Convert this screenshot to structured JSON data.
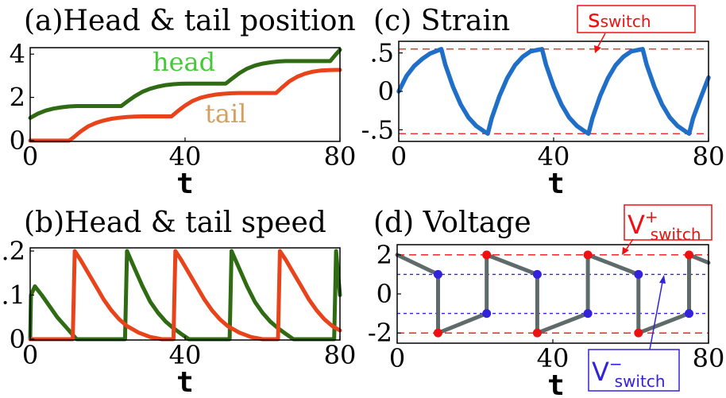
{
  "colors": {
    "head": "#2e6b12",
    "tail": "#e8431a",
    "strain": "#1f6fc9",
    "voltage_line": "#5f6b6b",
    "v_plus_dot": "#ee1111",
    "v_minus_dot": "#3322dd",
    "red_ref": "#ee1111",
    "blue_ref": "#3322dd",
    "head_label": "#46c83a",
    "tail_label": "#d4a062"
  },
  "chart_data": [
    {
      "id": "a",
      "type": "line",
      "title": "(a)Head & tail position",
      "xlabel": "t",
      "xlim": [
        0,
        80
      ],
      "ylim": [
        0,
        4.3
      ],
      "xticks": [
        "0",
        "40",
        "80"
      ],
      "yticks": [
        {
          "value": 0,
          "label": "0"
        },
        {
          "value": 2,
          "label": "2"
        },
        {
          "value": 4,
          "label": "4"
        }
      ],
      "annotations": {
        "head": "head",
        "tail": "tail"
      },
      "series": [
        {
          "name": "head",
          "color": "#2e6b12",
          "x": [
            0,
            2,
            4,
            6,
            8,
            10,
            12,
            14,
            16,
            18,
            20,
            22,
            23.5,
            25,
            27,
            29,
            31,
            33,
            35,
            37,
            39,
            41,
            43,
            45,
            47,
            49,
            50.5,
            52,
            54,
            56,
            58,
            60,
            62,
            64,
            66,
            68,
            70,
            72,
            74,
            76,
            77.5,
            79,
            80
          ],
          "y": [
            1.05,
            1.25,
            1.39,
            1.48,
            1.54,
            1.58,
            1.6,
            1.6,
            1.6,
            1.6,
            1.6,
            1.6,
            1.6,
            1.8,
            2.05,
            2.26,
            2.4,
            2.5,
            2.57,
            2.61,
            2.63,
            2.64,
            2.64,
            2.64,
            2.64,
            2.64,
            2.64,
            2.85,
            3.12,
            3.33,
            3.47,
            3.56,
            3.62,
            3.66,
            3.68,
            3.68,
            3.68,
            3.68,
            3.68,
            3.68,
            3.68,
            4.0,
            4.2
          ]
        },
        {
          "name": "tail",
          "color": "#e8431a",
          "x": [
            0,
            5,
            10,
            11,
            13,
            15,
            17,
            19,
            21,
            23,
            25,
            27,
            29,
            31,
            33,
            35,
            36.5,
            38,
            40,
            42,
            44,
            46,
            48,
            50,
            52,
            54,
            56,
            58,
            60,
            62,
            63.5,
            65,
            67,
            69,
            71,
            73,
            75,
            77,
            79,
            80
          ],
          "y": [
            0,
            0,
            0,
            0.12,
            0.42,
            0.66,
            0.82,
            0.93,
            1.01,
            1.06,
            1.09,
            1.11,
            1.12,
            1.12,
            1.12,
            1.12,
            1.12,
            1.35,
            1.62,
            1.84,
            1.98,
            2.07,
            2.13,
            2.17,
            2.19,
            2.2,
            2.2,
            2.2,
            2.2,
            2.2,
            2.2,
            2.45,
            2.75,
            2.96,
            3.1,
            3.19,
            3.24,
            3.26,
            3.27,
            3.27
          ]
        }
      ]
    },
    {
      "id": "b",
      "type": "line",
      "title": "(b)Head & tail speed",
      "xlabel": "t",
      "xlim": [
        0,
        80
      ],
      "ylim": [
        0,
        0.2
      ],
      "xticks": [
        "0",
        "40",
        "80"
      ],
      "yticks": [
        {
          "value": 0,
          "label": "0"
        },
        {
          "value": 0.1,
          "label": ".1"
        },
        {
          "value": 0.2,
          "label": ".2"
        }
      ],
      "series": [
        {
          "name": "head",
          "color": "#2e6b12",
          "x": [
            0,
            0.2,
            1.2,
            3,
            5,
            7,
            9,
            10,
            11,
            12,
            14,
            16,
            18,
            20,
            22,
            23.5,
            24.5,
            25,
            27,
            29,
            31,
            33,
            35,
            37,
            39,
            41,
            43,
            45,
            47,
            49,
            50.5,
            51.5,
            52,
            54,
            56,
            58,
            60,
            62,
            64,
            66,
            68,
            70,
            72,
            74,
            76,
            77.5,
            78.5,
            79,
            80
          ],
          "y": [
            0,
            0.1,
            0.12,
            0.1,
            0.075,
            0.05,
            0.03,
            0.02,
            0.01,
            0,
            0,
            0,
            0,
            0,
            0,
            0,
            0,
            0.2,
            0.16,
            0.12,
            0.085,
            0.06,
            0.04,
            0.025,
            0.012,
            0,
            0,
            0,
            0,
            0,
            0,
            0,
            0.2,
            0.16,
            0.12,
            0.085,
            0.06,
            0.04,
            0.025,
            0.012,
            0,
            0,
            0,
            0,
            0,
            0,
            0,
            0.2,
            0.1
          ]
        },
        {
          "name": "tail",
          "color": "#e8431a",
          "x": [
            0,
            10,
            11,
            11.5,
            13,
            15,
            17,
            19,
            21,
            23,
            25,
            28,
            31,
            34,
            36.5,
            37,
            37.5,
            39,
            41,
            43,
            45,
            47,
            49,
            51,
            54,
            57,
            60,
            63.5,
            64,
            64.5,
            66,
            68,
            70,
            72,
            74,
            76,
            78,
            80
          ],
          "y": [
            0,
            0,
            0,
            0.2,
            0.18,
            0.15,
            0.12,
            0.09,
            0.065,
            0.045,
            0.03,
            0.015,
            0.005,
            0,
            0,
            0,
            0.2,
            0.18,
            0.15,
            0.12,
            0.09,
            0.065,
            0.045,
            0.03,
            0.015,
            0.005,
            0,
            0,
            0,
            0.2,
            0.18,
            0.15,
            0.12,
            0.09,
            0.065,
            0.045,
            0.03,
            0.02
          ]
        }
      ]
    },
    {
      "id": "c",
      "type": "line",
      "title": "(c) Strain",
      "xlabel": "t",
      "xlim": [
        0,
        80
      ],
      "ylim": [
        -0.62,
        0.62
      ],
      "xticks": [
        "0",
        "40",
        "80"
      ],
      "yticks": [
        {
          "value": 0.5,
          "label": ".5"
        },
        {
          "value": 0,
          "label": "0"
        },
        {
          "value": -0.5,
          "label": "-.5"
        }
      ],
      "reference_lines": [
        {
          "value": 0.55,
          "color": "#ee1111"
        },
        {
          "value": -0.55,
          "color": "#ee1111"
        }
      ],
      "annotations": {
        "s_switch_main": "s",
        "s_switch_sub": "switch"
      },
      "series": [
        {
          "name": "strain",
          "color": "#1f6fc9",
          "x": [
            0,
            2,
            4,
            6,
            8,
            10,
            11,
            12,
            14,
            16,
            18,
            20,
            22,
            23,
            24,
            26,
            28,
            30,
            32,
            34,
            36,
            37,
            38,
            40,
            42,
            44,
            46,
            48,
            49,
            50,
            52,
            54,
            56,
            58,
            60,
            62,
            63,
            64,
            66,
            68,
            70,
            72,
            74,
            75,
            76,
            78,
            80
          ],
          "y": [
            0,
            0.2,
            0.33,
            0.42,
            0.49,
            0.53,
            0.55,
            0.35,
            0.06,
            -0.17,
            -0.34,
            -0.45,
            -0.52,
            -0.55,
            -0.35,
            -0.06,
            0.17,
            0.34,
            0.45,
            0.52,
            0.54,
            0.55,
            0.35,
            0.06,
            -0.17,
            -0.34,
            -0.45,
            -0.52,
            -0.55,
            -0.35,
            -0.06,
            0.17,
            0.34,
            0.45,
            0.52,
            0.54,
            0.55,
            0.35,
            0.06,
            -0.17,
            -0.34,
            -0.45,
            -0.52,
            -0.55,
            -0.35,
            -0.08,
            0.18
          ]
        }
      ]
    },
    {
      "id": "d",
      "type": "line",
      "title": "(d) Voltage",
      "xlabel": "t",
      "xlim": [
        0,
        80
      ],
      "ylim": [
        -2.4,
        2.4
      ],
      "xticks": [
        "0",
        "40",
        "80"
      ],
      "yticks": [
        {
          "value": 2,
          "label": "2"
        },
        {
          "value": 0,
          "label": "0"
        },
        {
          "value": -2,
          "label": "-2"
        }
      ],
      "reference_lines": [
        {
          "value": 2,
          "color": "#ee1111"
        },
        {
          "value": -2,
          "color": "#ee1111"
        },
        {
          "value": 1,
          "color": "#3322dd"
        },
        {
          "value": -1,
          "color": "#3322dd"
        }
      ],
      "annotations": {
        "v_plus_main": "V",
        "v_plus_sup": "+",
        "v_plus_sub": "switch",
        "v_minus_main": "V",
        "v_minus_sup": "−",
        "v_minus_sub": "switch"
      },
      "series": [
        {
          "name": "voltage",
          "color": "#5f6b6b",
          "x": [
            0,
            10.5,
            10.5,
            23,
            23,
            36,
            36,
            49,
            49,
            62,
            62,
            75,
            75,
            80
          ],
          "y": [
            2,
            1,
            -2,
            -1,
            2,
            1,
            -2,
            -1,
            2,
            1,
            -2,
            -1,
            2,
            1.6
          ]
        }
      ],
      "markers": {
        "red": {
          "color": "#ee1111",
          "x": [
            10.5,
            23,
            36,
            49,
            62,
            75
          ],
          "y": [
            -2,
            2,
            -2,
            2,
            -2,
            2
          ]
        },
        "blue": {
          "color": "#3322dd",
          "x": [
            10.5,
            23,
            36,
            49,
            62,
            75
          ],
          "y": [
            1,
            -1,
            1,
            -1,
            1,
            -1
          ]
        }
      }
    }
  ]
}
